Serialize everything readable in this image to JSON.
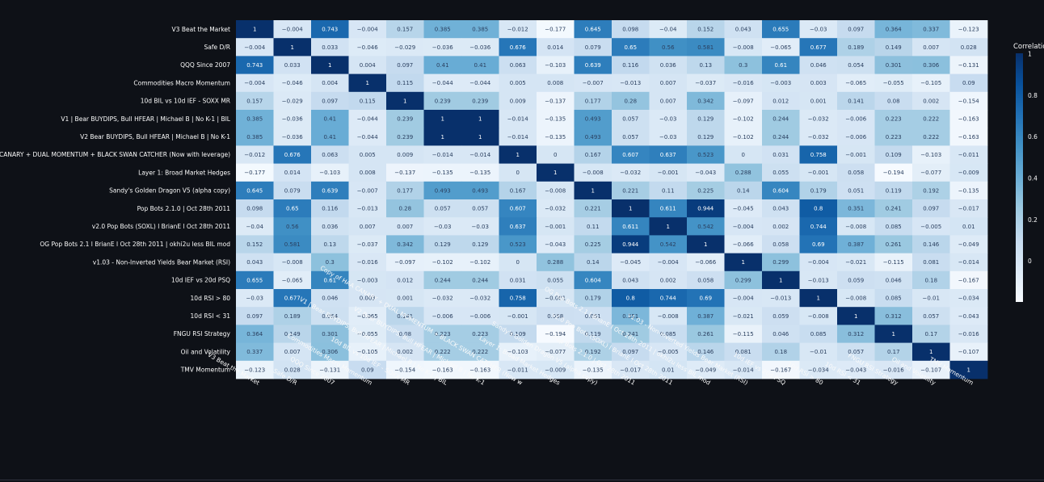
{
  "chart_data": {
    "type": "heatmap",
    "title": "",
    "colorbar_title": "Correlation",
    "colorbar_ticks": [
      1,
      0.8,
      0.6,
      0.4,
      0.2,
      0
    ],
    "zlim": [
      -0.2,
      1
    ],
    "colorscale": [
      "#f7fbff",
      "#deebf7",
      "#c6dbef",
      "#9ecae1",
      "#6baed6",
      "#4292c6",
      "#2171b5",
      "#08519c",
      "#08306b"
    ],
    "labels": [
      "V3 Beat the Market",
      "Safe D/R",
      "QQQ Since 2007",
      "Commodities Macro Momentum",
      "10d BIL vs 10d IEF - SOXX MR",
      "V1 | Bear BUYDIPS, Bull HFEAR | Michael B | No K-1 | BIL",
      "V2  Bear BUYDIPS, Bull HFEAR | Michael B | No K-1",
      "Copy of HAA CANARY + DUAL MOMENTUM + BLACK SWAN CATCHER (Now with leverage)",
      "Layer 1: Broad Market Hedges",
      "Sandy's Golden Dragon V5 (alpha copy)",
      "Pop Bots 2.1.0 | Oct 28th 2011",
      "v2.0 Pop Bots (SOXL) l BrianE l Oct 28th 2011",
      "OG Pop Bots 2.1 l BrianE l Oct 28th 2011 | okhi2u less BIL mod",
      "v1.03 - Non-Inverted Yields Bear Market (RSI)",
      "10d IEF vs 20d PSQ",
      "10d RSI > 80",
      "10d RSI < 31",
      "FNGU RSI Strategy",
      "Oil and Volatility",
      "TMV Momentum"
    ],
    "x_labels": [
      "V3 Beat the Market",
      "Safe D/R",
      "QQQ Since 2007",
      "Commodities Macro Momentum",
      "10d BIL vs 10d IEF - SOXX MR",
      "V1 | Bear BUYDIPS, Bull HFEAR | Michael B | No K-1 | BIL",
      "V2  Bear BUYDIPS, Bull HFEAR | Michael B | No K-1",
      "Copy of HAA CANARY + DUAL MOMENTUM + BLACK SWAN CATCHER (Now w",
      "Layer 1: Broad Market Hedges",
      "Sandy's Golden Dragon V5 (alpha copy)",
      "Pop Bots 2.1.0 | Oct 28th 2011",
      "v2.0 Pop Bots (SOXL) l BrianE l Oct 28th 2011",
      "OG Pop Bots 2.1 l BrianE l Oct 28th 2011 | okhi2u less BIL mod",
      "v1.03 - Non-Inverted Yields Bear Market (RSI)",
      "10d IEF vs 20d PSQ",
      "10d RSI > 80",
      "10d RSI < 31",
      "FNGU RSI Strategy",
      "Oil and Volatility",
      "TMV Momentum"
    ],
    "values": [
      [
        1,
        -0.004,
        0.743,
        -0.004,
        0.157,
        0.385,
        0.385,
        -0.012,
        -0.177,
        0.645,
        0.098,
        -0.04,
        0.152,
        0.043,
        0.655,
        -0.03,
        0.097,
        0.364,
        0.337,
        -0.123
      ],
      [
        -0.004,
        1,
        0.033,
        -0.046,
        -0.029,
        -0.036,
        -0.036,
        0.676,
        0.014,
        0.079,
        0.65,
        0.56,
        0.581,
        -0.008,
        -0.065,
        0.677,
        0.189,
        0.149,
        0.007,
        0.028
      ],
      [
        0.743,
        0.033,
        1,
        0.004,
        0.097,
        0.41,
        0.41,
        0.063,
        -0.103,
        0.639,
        0.116,
        0.036,
        0.13,
        0.3,
        0.61,
        0.046,
        0.054,
        0.301,
        0.306,
        -0.131
      ],
      [
        -0.004,
        -0.046,
        0.004,
        1,
        0.115,
        -0.044,
        -0.044,
        0.005,
        0.008,
        -0.007,
        -0.013,
        0.007,
        -0.037,
        -0.016,
        -0.003,
        0.003,
        -0.065,
        -0.055,
        -0.105,
        0.09
      ],
      [
        0.157,
        -0.029,
        0.097,
        0.115,
        1,
        0.239,
        0.239,
        0.009,
        -0.137,
        0.177,
        0.28,
        0.007,
        0.342,
        -0.097,
        0.012,
        0.001,
        0.141,
        0.08,
        0.002,
        -0.154
      ],
      [
        0.385,
        -0.036,
        0.41,
        -0.044,
        0.239,
        1,
        1,
        -0.014,
        -0.135,
        0.493,
        0.057,
        -0.03,
        0.129,
        -0.102,
        0.244,
        -0.032,
        -0.006,
        0.223,
        0.222,
        -0.163
      ],
      [
        0.385,
        -0.036,
        0.41,
        -0.044,
        0.239,
        1,
        1,
        -0.014,
        -0.135,
        0.493,
        0.057,
        -0.03,
        0.129,
        -0.102,
        0.244,
        -0.032,
        -0.006,
        0.223,
        0.222,
        -0.163
      ],
      [
        -0.012,
        0.676,
        0.063,
        0.005,
        0.009,
        -0.014,
        -0.014,
        1,
        0,
        0.167,
        0.607,
        0.637,
        0.523,
        0,
        0.031,
        0.758,
        -0.001,
        0.109,
        -0.103,
        -0.011
      ],
      [
        -0.177,
        0.014,
        -0.103,
        0.008,
        -0.137,
        -0.135,
        -0.135,
        0,
        1,
        -0.008,
        -0.032,
        -0.001,
        -0.043,
        0.288,
        0.055,
        -0.001,
        0.058,
        -0.194,
        -0.077,
        -0.009
      ],
      [
        0.645,
        0.079,
        0.639,
        -0.007,
        0.177,
        0.493,
        0.493,
        0.167,
        -0.008,
        1,
        0.221,
        0.11,
        0.225,
        0.14,
        0.604,
        0.179,
        0.051,
        0.119,
        0.192,
        -0.135
      ],
      [
        0.098,
        0.65,
        0.116,
        -0.013,
        0.28,
        0.057,
        0.057,
        0.607,
        -0.032,
        0.221,
        1,
        0.611,
        0.944,
        -0.045,
        0.043,
        0.8,
        0.351,
        0.241,
        0.097,
        -0.017
      ],
      [
        -0.04,
        0.56,
        0.036,
        0.007,
        0.007,
        -0.03,
        -0.03,
        0.637,
        -0.001,
        0.11,
        0.611,
        1,
        0.542,
        -0.004,
        0.002,
        0.744,
        -0.008,
        0.085,
        -0.005,
        0.01
      ],
      [
        0.152,
        0.581,
        0.13,
        -0.037,
        0.342,
        0.129,
        0.129,
        0.523,
        -0.043,
        0.225,
        0.944,
        0.542,
        1,
        -0.066,
        0.058,
        0.69,
        0.387,
        0.261,
        0.146,
        -0.049
      ],
      [
        0.043,
        -0.008,
        0.3,
        -0.016,
        -0.097,
        -0.102,
        -0.102,
        0,
        0.288,
        0.14,
        -0.045,
        -0.004,
        -0.066,
        1,
        0.299,
        -0.004,
        -0.021,
        -0.115,
        0.081,
        -0.014
      ],
      [
        0.655,
        -0.065,
        0.61,
        -0.003,
        0.012,
        0.244,
        0.244,
        0.031,
        0.055,
        0.604,
        0.043,
        0.002,
        0.058,
        0.299,
        1,
        -0.013,
        0.059,
        0.046,
        0.18,
        -0.167
      ],
      [
        -0.03,
        0.677,
        0.046,
        0.003,
        0.001,
        -0.032,
        -0.032,
        0.758,
        -0.001,
        0.179,
        0.8,
        0.744,
        0.69,
        -0.004,
        -0.013,
        1,
        -0.008,
        0.085,
        -0.01,
        -0.034
      ],
      [
        0.097,
        0.189,
        0.054,
        -0.065,
        0.141,
        -0.006,
        -0.006,
        -0.001,
        0.058,
        0.051,
        0.351,
        -0.008,
        0.387,
        -0.021,
        0.059,
        -0.008,
        1,
        0.312,
        0.057,
        -0.043
      ],
      [
        0.364,
        0.149,
        0.301,
        -0.055,
        0.08,
        0.223,
        0.223,
        0.109,
        -0.194,
        0.119,
        0.241,
        0.085,
        0.261,
        -0.115,
        0.046,
        0.085,
        0.312,
        1,
        0.17,
        -0.016
      ],
      [
        0.337,
        0.007,
        0.306,
        -0.105,
        0.002,
        0.222,
        0.222,
        -0.103,
        -0.077,
        0.192,
        0.097,
        -0.005,
        0.146,
        0.081,
        0.18,
        -0.01,
        0.057,
        0.17,
        1,
        -0.107
      ],
      [
        -0.123,
        0.028,
        -0.131,
        0.09,
        -0.154,
        -0.163,
        -0.163,
        -0.011,
        -0.009,
        -0.135,
        -0.017,
        0.01,
        -0.049,
        -0.014,
        -0.167,
        -0.034,
        -0.043,
        -0.016,
        -0.107,
        1
      ]
    ]
  }
}
